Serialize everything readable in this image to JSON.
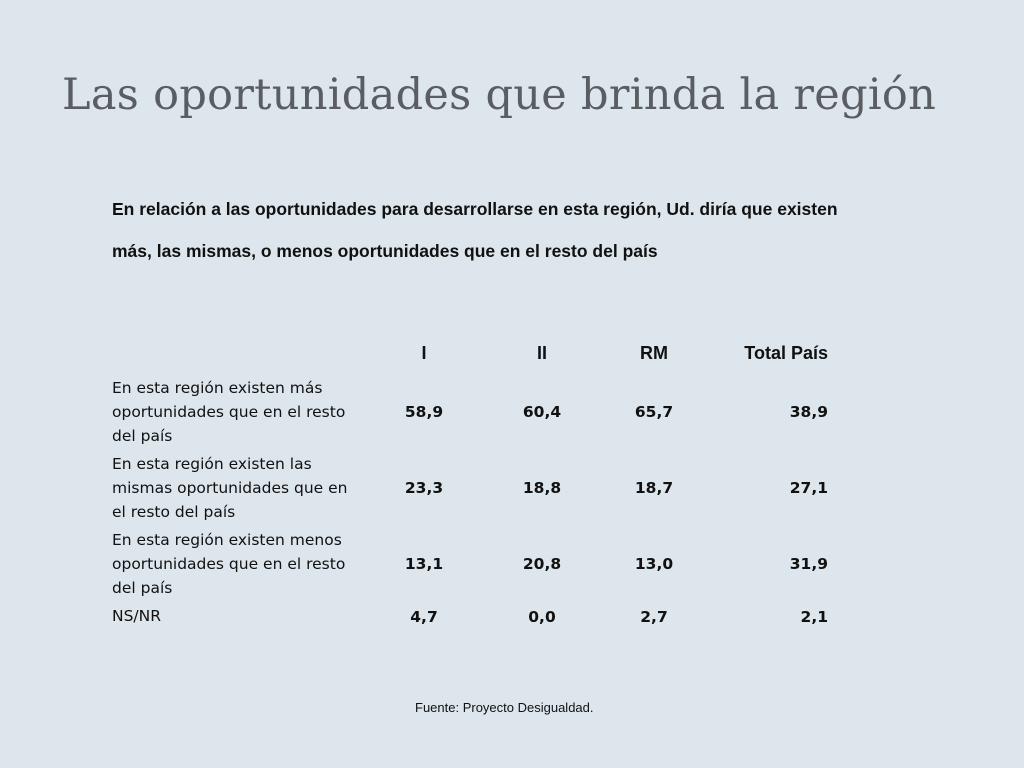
{
  "slide": {
    "title": "Las oportunidades que brinda la región",
    "question_line1": "En relación a las oportunidades para desarrollarse en esta región, Ud. diría que existen",
    "question_line2": "más, las mismas, o menos oportunidades que en el resto del país",
    "source": "Fuente: Proyecto Desigualdad."
  },
  "table": {
    "headers": [
      "",
      "I",
      "II",
      "RM",
      "Total País"
    ],
    "rows": [
      {
        "label": "En esta región existen más oportunidades que en el resto del país",
        "values": [
          "58,9",
          "60,4",
          "65,7",
          "38,9"
        ]
      },
      {
        "label": "En esta región existen las mismas oportunidades que en el resto del país",
        "values": [
          "23,3",
          "18,8",
          "18,7",
          "27,1"
        ]
      },
      {
        "label": "En esta región existen menos oportunidades que en el resto del país",
        "values": [
          "13,1",
          "20,8",
          "13,0",
          "31,9"
        ]
      },
      {
        "label": "NS/NR",
        "values": [
          "4,7",
          "0,0",
          "2,7",
          "2,1"
        ]
      }
    ]
  }
}
